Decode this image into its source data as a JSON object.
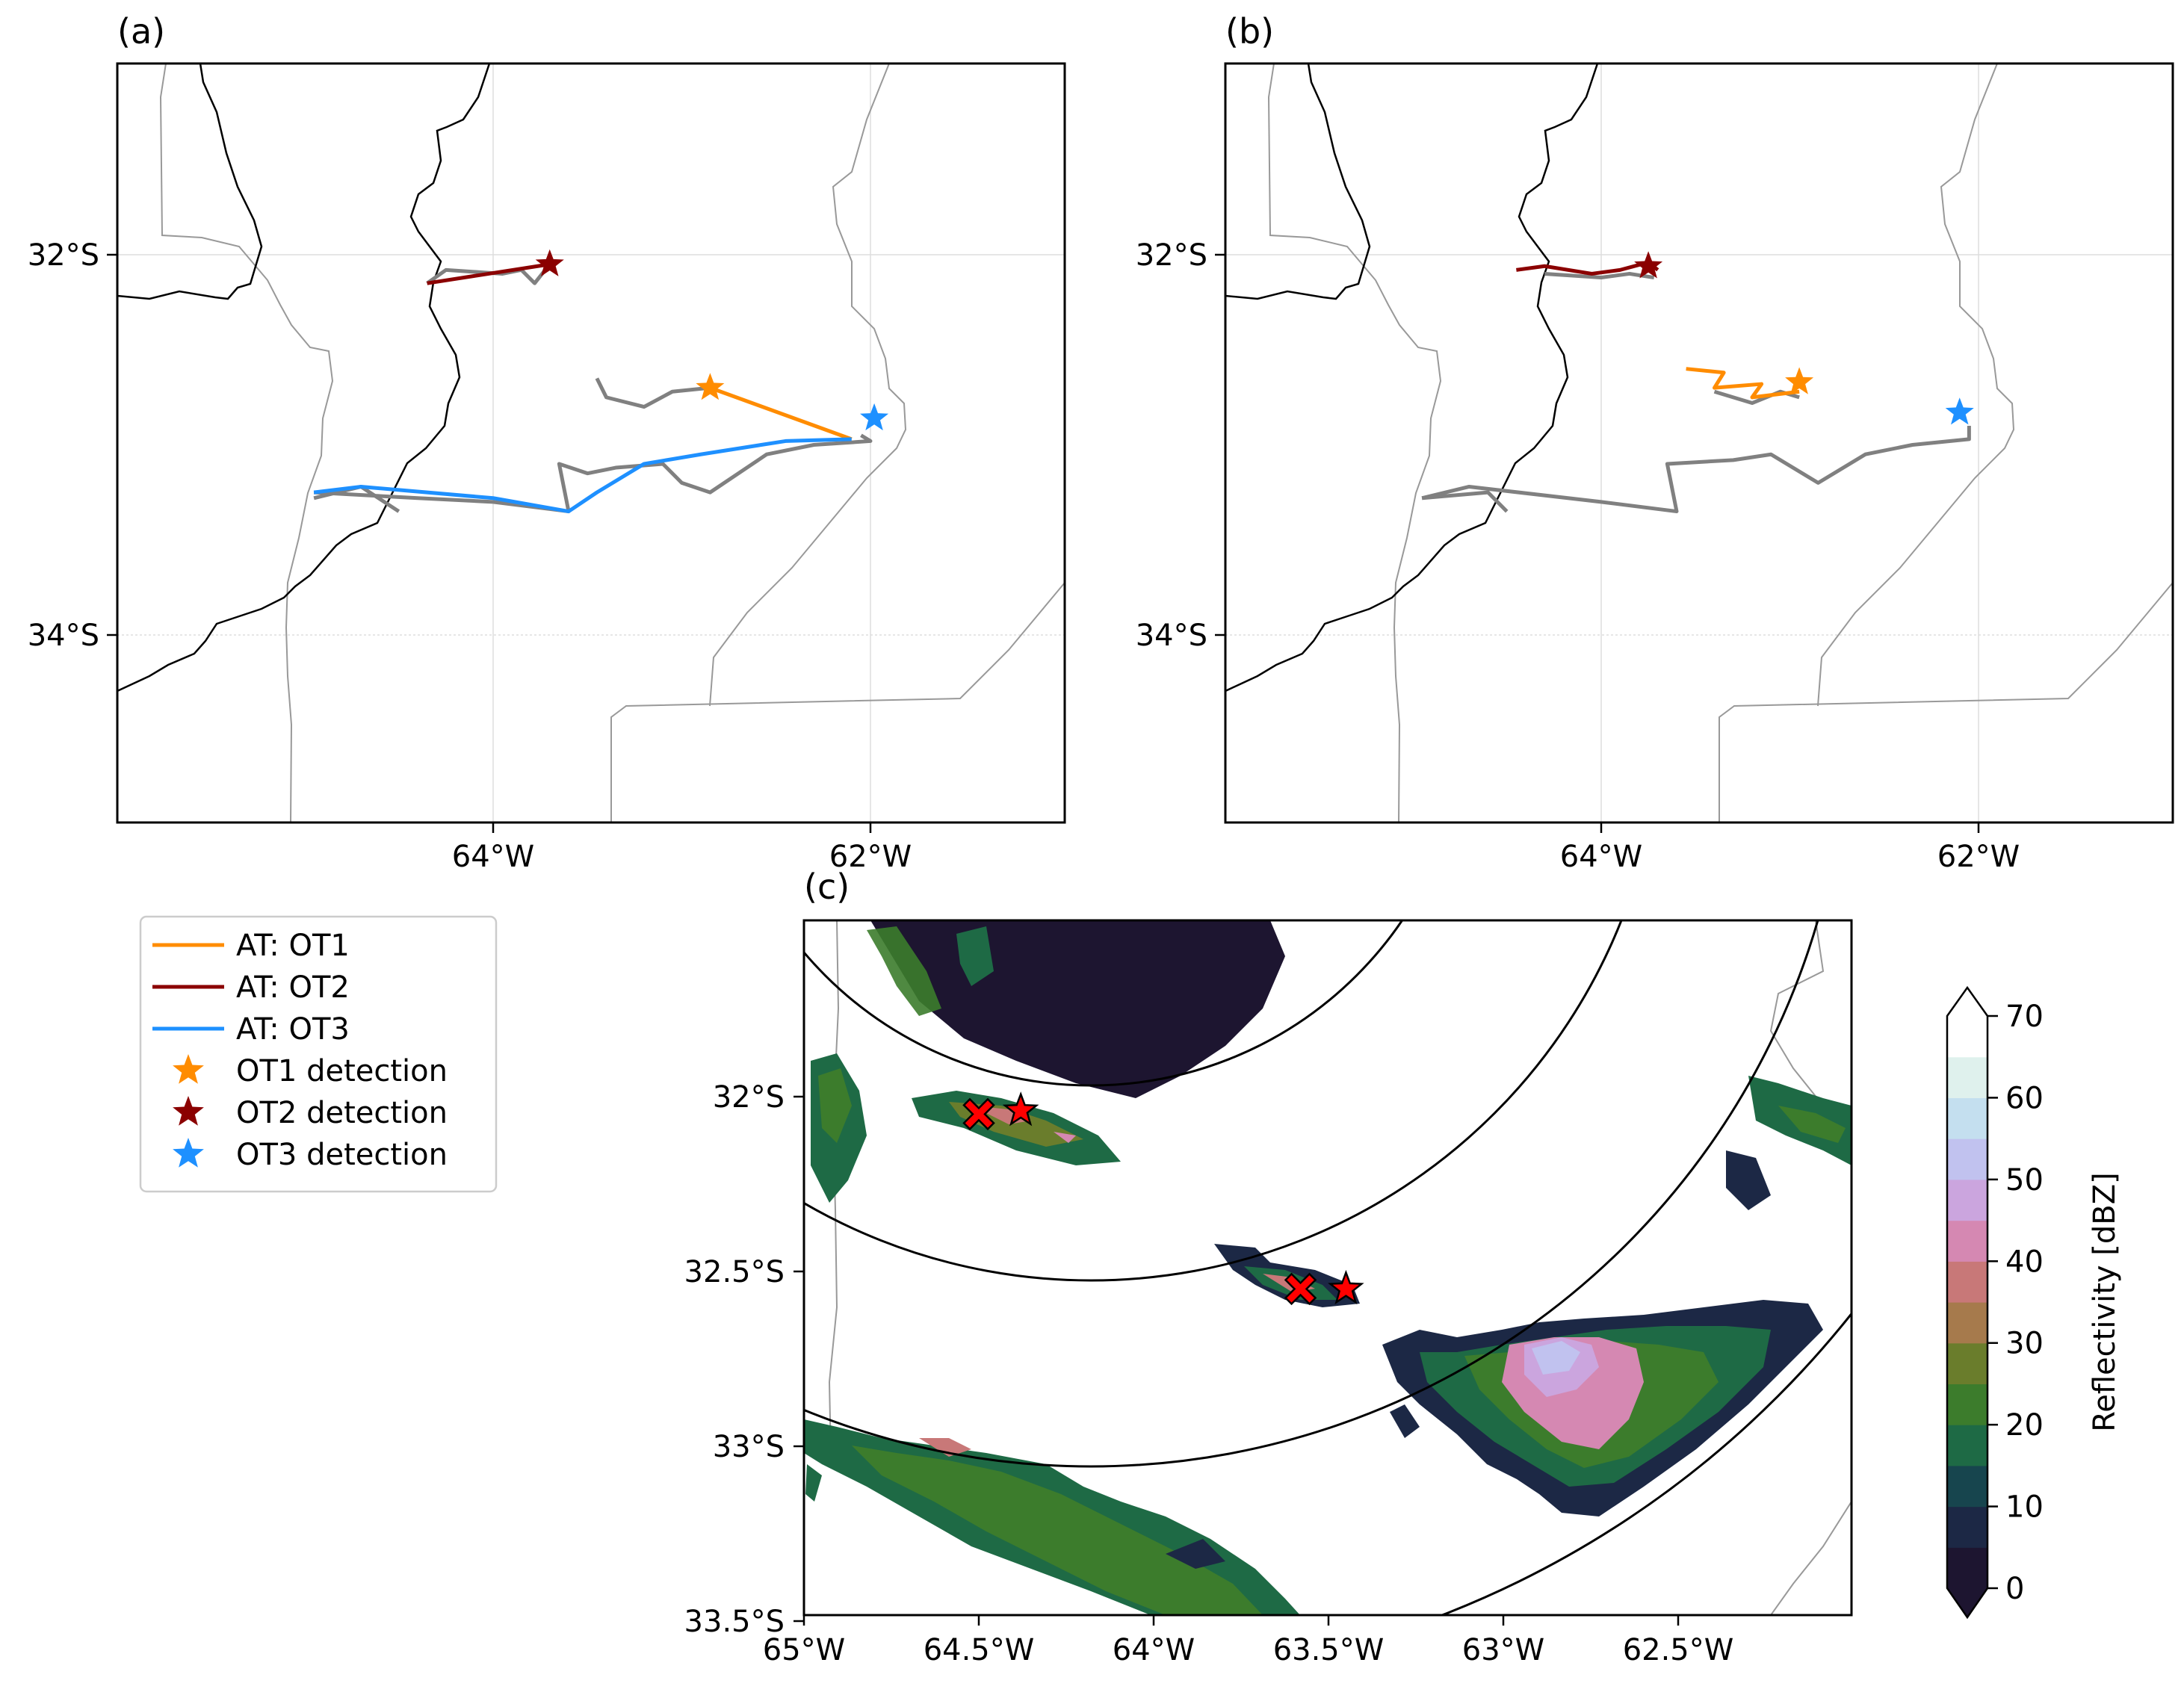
{
  "panel_a": {
    "label": "(a)",
    "lon_ticks": [
      "64°W",
      "62°W"
    ],
    "lat_ticks": [
      "32°S",
      "34°S"
    ],
    "tracks": [
      {
        "name": "AT: OT1",
        "color": "#ff8c00",
        "points": [
          [
            -62.85,
            -32.7
          ],
          [
            -62.1,
            -32.97
          ]
        ]
      },
      {
        "name": "AT: OT2",
        "color": "#8b0000",
        "points": [
          [
            -64.35,
            -32.15
          ],
          [
            -63.7,
            -32.05
          ]
        ]
      },
      {
        "name": "AT: OT3",
        "color": "#1e90ff",
        "points": [
          [
            -64.95,
            -33.25
          ],
          [
            -64.7,
            -33.22
          ],
          [
            -64.0,
            -33.28
          ],
          [
            -63.6,
            -33.35
          ],
          [
            -63.45,
            -33.25
          ],
          [
            -63.2,
            -33.1
          ],
          [
            -62.9,
            -33.05
          ],
          [
            -62.45,
            -32.98
          ],
          [
            -62.1,
            -32.97
          ]
        ]
      }
    ],
    "gray_tracks": [
      [
        [
          -63.45,
          -32.65
        ],
        [
          -63.4,
          -32.75
        ],
        [
          -63.2,
          -32.8
        ],
        [
          -63.05,
          -32.72
        ],
        [
          -62.85,
          -32.7
        ]
      ],
      [
        [
          -64.35,
          -32.15
        ],
        [
          -64.25,
          -32.08
        ],
        [
          -63.95,
          -32.1
        ],
        [
          -63.85,
          -32.08
        ],
        [
          -63.78,
          -32.15
        ],
        [
          -63.7,
          -32.05
        ]
      ],
      [
        [
          -64.95,
          -33.25
        ],
        [
          -64.4,
          -33.28
        ],
        [
          -64.0,
          -33.3
        ],
        [
          -63.6,
          -33.35
        ],
        [
          -63.65,
          -33.1
        ],
        [
          -63.5,
          -33.15
        ],
        [
          -63.35,
          -33.12
        ],
        [
          -63.1,
          -33.1
        ],
        [
          -63.0,
          -33.2
        ],
        [
          -62.85,
          -33.25
        ],
        [
          -62.55,
          -33.05
        ],
        [
          -62.3,
          -33.0
        ],
        [
          -62.0,
          -32.98
        ],
        [
          -62.05,
          -32.95
        ]
      ],
      [
        [
          -64.95,
          -33.28
        ],
        [
          -64.7,
          -33.22
        ],
        [
          -64.5,
          -33.35
        ]
      ]
    ],
    "stars": [
      {
        "name": "OT1 detection",
        "color": "#ff8c00",
        "lon": -62.85,
        "lat": -32.7
      },
      {
        "name": "OT2 detection",
        "color": "#8b0000",
        "lon": -63.7,
        "lat": -32.05
      },
      {
        "name": "OT3 detection",
        "color": "#1e90ff",
        "lon": -61.98,
        "lat": -32.86
      }
    ]
  },
  "panel_b": {
    "label": "(b)",
    "lon_ticks": [
      "64°W",
      "62°W"
    ],
    "lat_ticks": [
      "32°S",
      "34°S"
    ],
    "tracks": [
      {
        "name": "AT: OT1",
        "color": "#ff8c00",
        "points": [
          [
            -63.55,
            -32.6
          ],
          [
            -63.35,
            -32.62
          ],
          [
            -63.4,
            -32.7
          ],
          [
            -63.15,
            -32.68
          ],
          [
            -63.2,
            -32.75
          ],
          [
            -62.95,
            -32.72
          ]
        ]
      },
      {
        "name": "AT: OT2",
        "color": "#8b0000",
        "points": [
          [
            -64.45,
            -32.08
          ],
          [
            -64.3,
            -32.06
          ],
          [
            -64.05,
            -32.1
          ],
          [
            -63.9,
            -32.08
          ],
          [
            -63.75,
            -32.04
          ],
          [
            -63.7,
            -32.08
          ]
        ]
      }
    ],
    "gray_tracks": [
      [
        [
          -63.4,
          -32.72
        ],
        [
          -63.2,
          -32.78
        ],
        [
          -63.05,
          -32.72
        ],
        [
          -62.95,
          -32.75
        ]
      ],
      [
        [
          -64.3,
          -32.1
        ],
        [
          -64.0,
          -32.12
        ],
        [
          -63.85,
          -32.1
        ],
        [
          -63.72,
          -32.12
        ]
      ],
      [
        [
          -64.95,
          -33.28
        ],
        [
          -64.7,
          -33.22
        ],
        [
          -64.0,
          -33.3
        ],
        [
          -63.6,
          -33.35
        ],
        [
          -63.65,
          -33.1
        ],
        [
          -63.3,
          -33.08
        ],
        [
          -63.1,
          -33.05
        ],
        [
          -62.85,
          -33.2
        ],
        [
          -62.6,
          -33.05
        ],
        [
          -62.35,
          -33.0
        ],
        [
          -62.05,
          -32.97
        ],
        [
          -62.05,
          -32.9
        ]
      ],
      [
        [
          -64.95,
          -33.28
        ],
        [
          -64.6,
          -33.25
        ],
        [
          -64.5,
          -33.35
        ]
      ]
    ],
    "stars": [
      {
        "name": "OT1 detection",
        "color": "#ff8c00",
        "lon": -62.95,
        "lat": -32.67
      },
      {
        "name": "OT2 detection",
        "color": "#8b0000",
        "lon": -63.75,
        "lat": -32.06
      },
      {
        "name": "OT3 detection",
        "color": "#1e90ff",
        "lon": -62.1,
        "lat": -32.83
      }
    ]
  },
  "legend": {
    "entries": [
      {
        "label": "AT: OT1",
        "kind": "line",
        "color": "#ff8c00"
      },
      {
        "label": "AT: OT2",
        "kind": "line",
        "color": "#8b0000"
      },
      {
        "label": "AT: OT3",
        "kind": "line",
        "color": "#1e90ff"
      },
      {
        "label": "OT1 detection",
        "kind": "star",
        "color": "#ff8c00"
      },
      {
        "label": "OT2 detection",
        "kind": "star",
        "color": "#8b0000"
      },
      {
        "label": "OT3 detection",
        "kind": "star",
        "color": "#1e90ff"
      }
    ]
  },
  "panel_c": {
    "label": "(c)",
    "lon_ticks": [
      "65°W",
      "64.5°W",
      "64°W",
      "63.5°W",
      "63°W",
      "62.5°W"
    ],
    "lat_ticks": [
      "32°S",
      "32.5°S",
      "33°S",
      "33.5°S"
    ],
    "x_markers": [
      {
        "lon": -64.5,
        "lat": -32.05
      },
      {
        "lon": -63.58,
        "lat": -32.55
      }
    ],
    "star_markers": [
      {
        "lon": -64.38,
        "lat": -32.04
      },
      {
        "lon": -63.45,
        "lat": -32.55
      }
    ],
    "marker_color": "#ff0000"
  },
  "colorbar": {
    "label": "Reflectivity [dBZ]",
    "min": 0,
    "max": 70,
    "tick_labels": [
      "0",
      "10",
      "20",
      "30",
      "40",
      "50",
      "60",
      "70"
    ],
    "colors": [
      "#1d1530",
      "#1c2845",
      "#17454e",
      "#1e6a45",
      "#3c7c2c",
      "#6a7d2c",
      "#a67a4c",
      "#c87878",
      "#d588b2",
      "#cba5de",
      "#c1c2ef",
      "#c4dfef",
      "#dff1ed",
      "#ffffff"
    ]
  }
}
